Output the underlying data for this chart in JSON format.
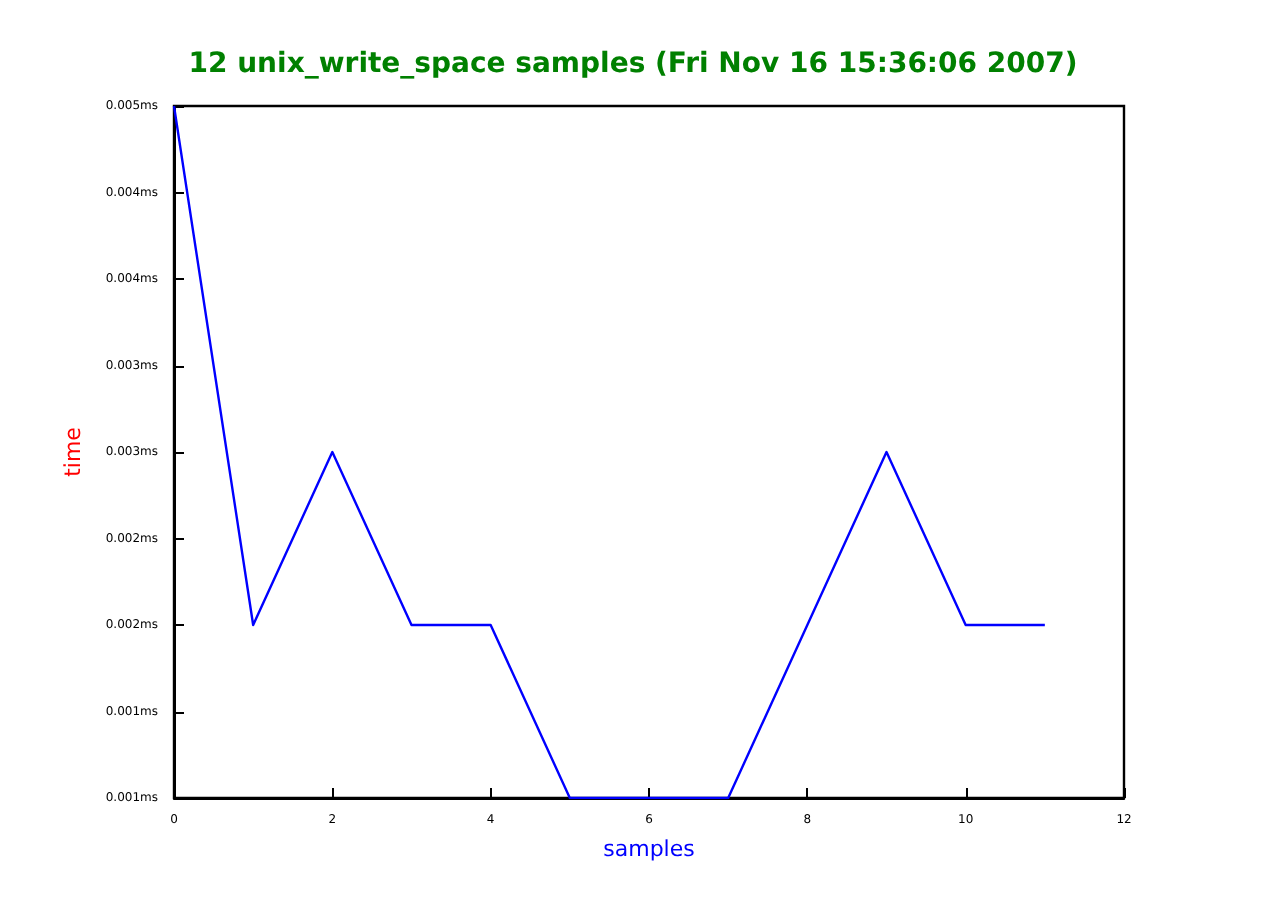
{
  "chart_data": {
    "type": "line",
    "title": "12 unix_write_space samples (Fri Nov 16 15:36:06 2007)",
    "xlabel": "samples",
    "ylabel": "time",
    "x": [
      0,
      1,
      2,
      3,
      4,
      5,
      6,
      7,
      8,
      9,
      10,
      11
    ],
    "series": [
      {
        "color": "#0000ff",
        "values": [
          0.005,
          0.002,
          0.003,
          0.002,
          0.002,
          0.001,
          0.001,
          0.001,
          0.002,
          0.003,
          0.002,
          0.002
        ]
      }
    ],
    "xlim": [
      0,
      12
    ],
    "xticks": [
      0,
      2,
      4,
      6,
      8,
      10,
      12
    ],
    "ylim": [
      0.001,
      0.005
    ],
    "yticks": [
      {
        "value": 0.001,
        "label": "0.001ms"
      },
      {
        "value": 0.0015,
        "label": "0.001ms"
      },
      {
        "value": 0.002,
        "label": "0.002ms"
      },
      {
        "value": 0.0025,
        "label": "0.002ms"
      },
      {
        "value": 0.003,
        "label": "0.003ms"
      },
      {
        "value": 0.0035,
        "label": "0.003ms"
      },
      {
        "value": 0.004,
        "label": "0.004ms"
      },
      {
        "value": 0.0045,
        "label": "0.004ms"
      },
      {
        "value": 0.005,
        "label": "0.005ms"
      }
    ],
    "grid": false,
    "marker": "none",
    "line_style": "solid"
  }
}
